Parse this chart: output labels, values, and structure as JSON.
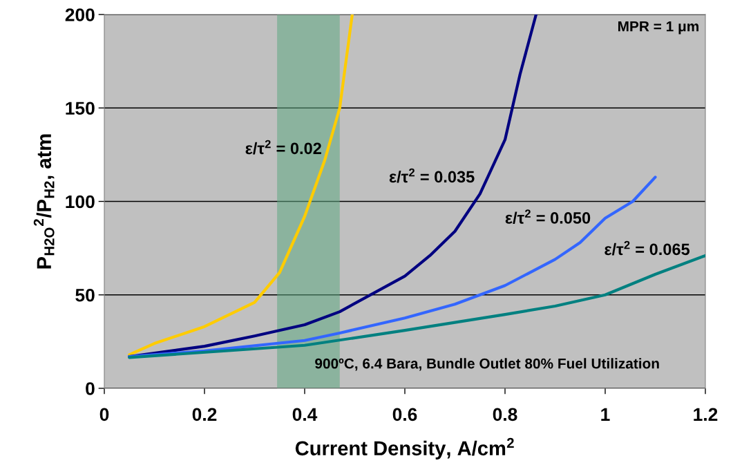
{
  "chart_data": {
    "type": "line",
    "xlabel": "Current Density, A/cm$^{2}$",
    "ylabel": "P$_{H2O}$$^{2}$/P$_{H2}$, atm",
    "xlim": [
      0,
      1.2
    ],
    "ylim": [
      0,
      200
    ],
    "xticks": [
      0,
      {
        "value": 0.2,
        "label": "0.2"
      },
      {
        "value": 0.4,
        "label": "0.4"
      },
      {
        "value": 0.6,
        "label": "0.6"
      },
      {
        "value": 0.8,
        "label": "0.8"
      },
      1,
      {
        "value": 1.2,
        "label": "1.2"
      }
    ],
    "yticks": [
      0,
      50,
      100,
      150,
      200
    ],
    "grid": "y",
    "series": [
      {
        "name": "ε/τ$^{2}$ = 0.02",
        "color": "#ffcc00",
        "x": [
          0.05,
          0.1,
          0.2,
          0.3,
          0.35,
          0.4,
          0.44,
          0.47,
          0.49,
          0.495
        ],
        "values": [
          18,
          24,
          33,
          46,
          62,
          92,
          122,
          150,
          190,
          200
        ]
      },
      {
        "name": "ε/τ$^{2}$ = 0.035",
        "color": "#000080",
        "x": [
          0.05,
          0.2,
          0.3,
          0.4,
          0.47,
          0.6,
          0.65,
          0.7,
          0.75,
          0.8,
          0.83,
          0.862
        ],
        "values": [
          17,
          22.5,
          28,
          34,
          41,
          60,
          71,
          84,
          104,
          133,
          168,
          200
        ]
      },
      {
        "name": "ε/τ$^{2}$ = 0.050",
        "color": "#3366ff",
        "x": [
          0.05,
          0.2,
          0.4,
          0.47,
          0.6,
          0.7,
          0.8,
          0.9,
          0.95,
          1.0,
          1.055,
          1.1
        ],
        "values": [
          17,
          20,
          25.6,
          29.6,
          37.6,
          45,
          55,
          69,
          78,
          91,
          100,
          113
        ]
      },
      {
        "name": "ε/τ$^{2}$ = 0.065",
        "color": "#008080",
        "x": [
          0.05,
          0.4,
          0.6,
          0.8,
          0.9,
          1.0,
          1.1,
          1.2
        ],
        "values": [
          16.5,
          23,
          31,
          39.5,
          44,
          50,
          61,
          71
        ]
      }
    ],
    "bands": [
      {
        "axis": "x",
        "from": 0.345,
        "to": 0.47,
        "color": "#5fa882"
      }
    ],
    "annotations": [
      "MPR = 1 μm",
      "900ºC, 6.4 Bara, Bundle Outlet 80% Fuel Utilization"
    ]
  }
}
